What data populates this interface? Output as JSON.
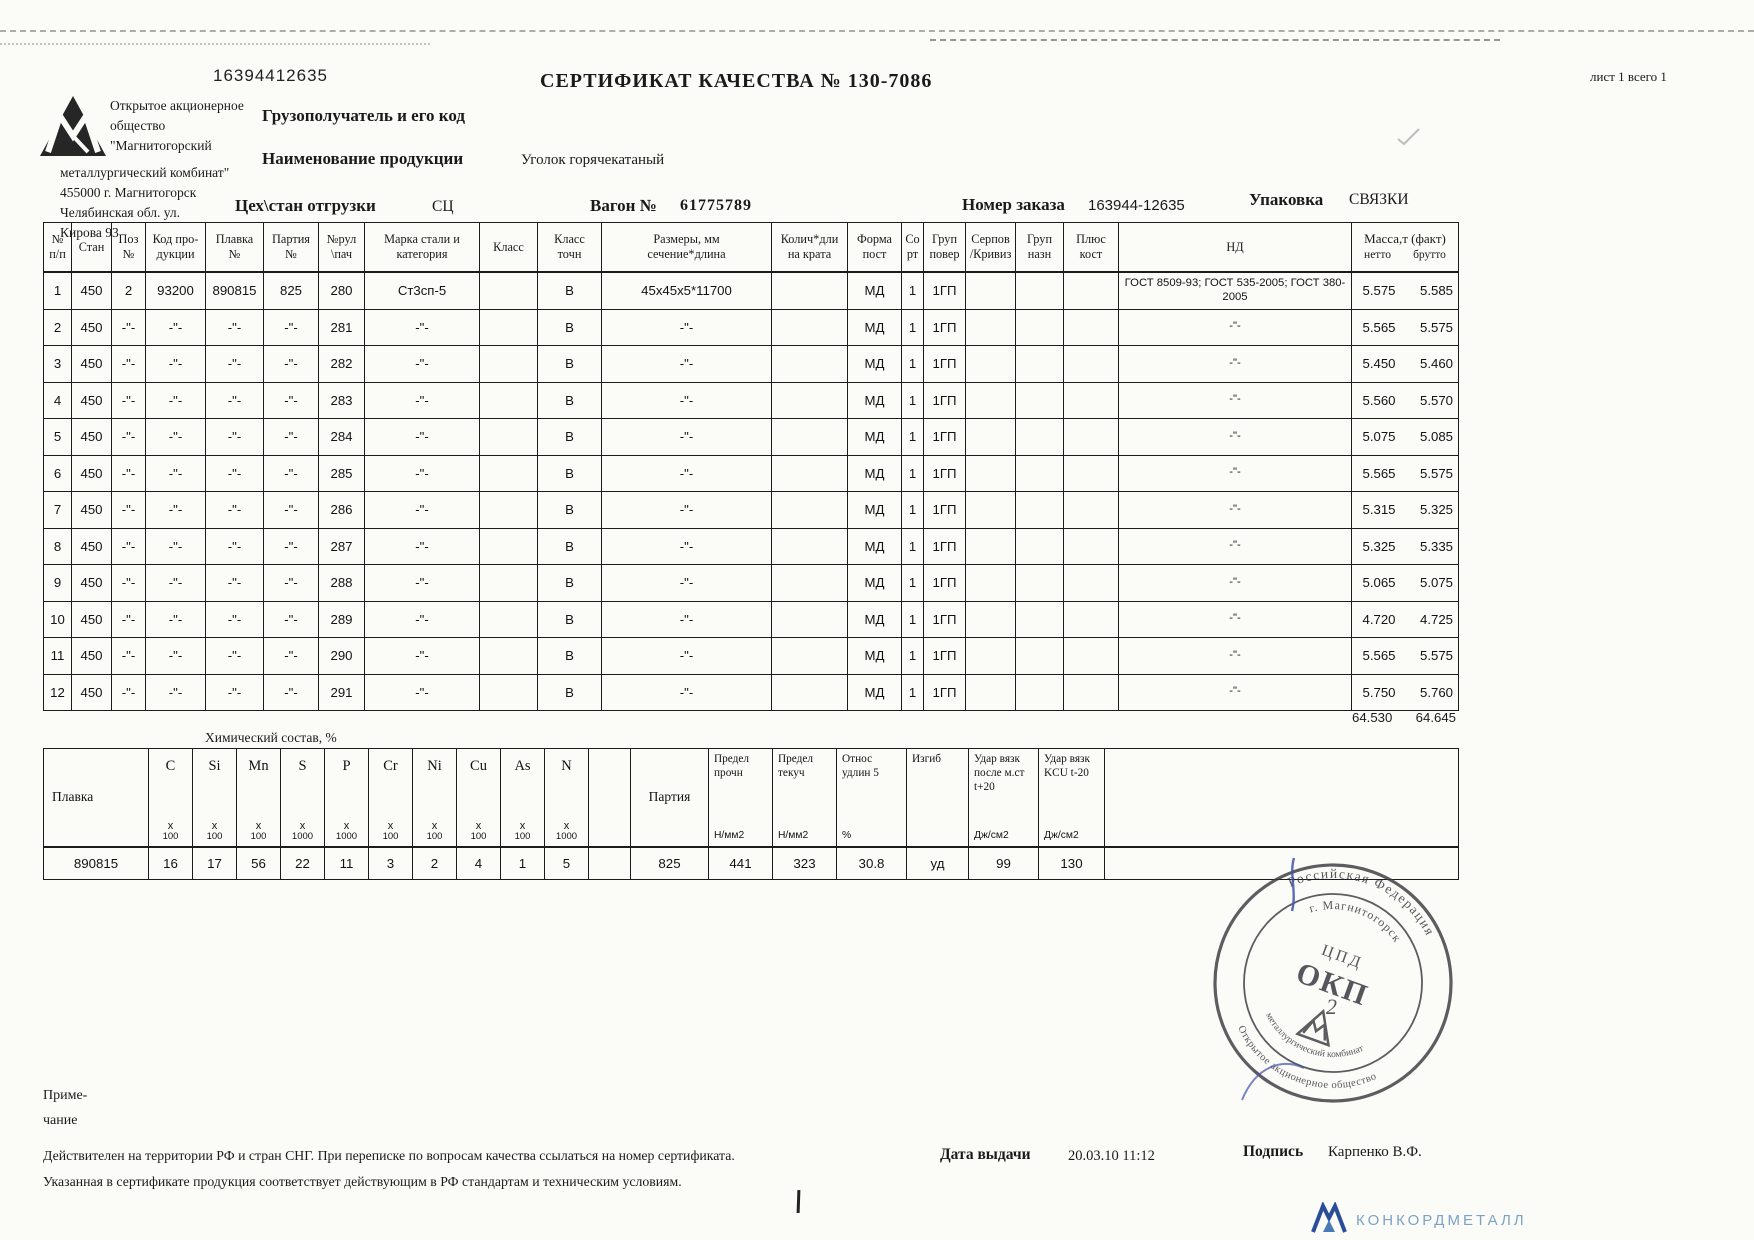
{
  "header": {
    "doc_number": "16394412635",
    "title": "СЕРТИФИКАТ КАЧЕСТВА № 130-7086",
    "sheet_label": "лист 1 всего 1",
    "company_top": "Открытое акционерное\nобщество\n\"Магнитогорский",
    "company_bottom": "металлургический комбинат\"\n455000 г. Магнитогорск\nЧелябинская обл.  ул.\nКирова 93",
    "consignee_label": "Грузополучатель и его код",
    "product_label": "Наименование продукции",
    "product_value": "Уголок горячекатаный",
    "shop_label": "Цех\\стан отгрузки",
    "shop_value": "СЦ",
    "wagon_label": "Вагон №",
    "wagon_value": "61775789",
    "order_label": "Номер заказа",
    "order_value": "163944-12635",
    "pack_label": "Упаковка",
    "pack_value": "СВЯЗКИ"
  },
  "main_table": {
    "headers": [
      "№\nп/п",
      "Стан",
      "Поз\n№",
      "Код про-\nдукции",
      "Плавка\n№",
      "Партия\n№",
      "№рул\n\\пач",
      "Марка стали и\nкатегория",
      "Класс",
      "Класс\nточн",
      "Размеры, мм\nсечение*длина",
      "Колич*дли\nна крата",
      "Форма\nпост",
      "Со\nрт",
      "Груп\nповер",
      "Серпов\n/Кривиз",
      "Груп\nназн",
      "Плюс\nкост",
      "НД"
    ],
    "mass_header": {
      "label": "Масса,т (факт)",
      "netto": "нетто",
      "brutto": "брутто"
    },
    "rows": [
      [
        "1",
        "450",
        "2",
        "93200",
        "890815",
        "825",
        "280",
        "Ст3сп-5",
        "",
        "В",
        "45х45х5*11700",
        "",
        "МД",
        "1",
        "1ГП",
        "",
        "",
        "",
        "ГОСТ 8509-93; ГОСТ 535-2005; ГОСТ 380-2005",
        "5.575",
        "5.585"
      ],
      [
        "2",
        "450",
        "-\"-",
        "-\"-",
        "-\"-",
        "-\"-",
        "281",
        "-\"-",
        "",
        "В",
        "-\"-",
        "",
        "МД",
        "1",
        "1ГП",
        "",
        "",
        "",
        "-\"-",
        "5.565",
        "5.575"
      ],
      [
        "3",
        "450",
        "-\"-",
        "-\"-",
        "-\"-",
        "-\"-",
        "282",
        "-\"-",
        "",
        "В",
        "-\"-",
        "",
        "МД",
        "1",
        "1ГП",
        "",
        "",
        "",
        "-\"-",
        "5.450",
        "5.460"
      ],
      [
        "4",
        "450",
        "-\"-",
        "-\"-",
        "-\"-",
        "-\"-",
        "283",
        "-\"-",
        "",
        "В",
        "-\"-",
        "",
        "МД",
        "1",
        "1ГП",
        "",
        "",
        "",
        "-\"-",
        "5.560",
        "5.570"
      ],
      [
        "5",
        "450",
        "-\"-",
        "-\"-",
        "-\"-",
        "-\"-",
        "284",
        "-\"-",
        "",
        "В",
        "-\"-",
        "",
        "МД",
        "1",
        "1ГП",
        "",
        "",
        "",
        "-\"-",
        "5.075",
        "5.085"
      ],
      [
        "6",
        "450",
        "-\"-",
        "-\"-",
        "-\"-",
        "-\"-",
        "285",
        "-\"-",
        "",
        "В",
        "-\"-",
        "",
        "МД",
        "1",
        "1ГП",
        "",
        "",
        "",
        "-\"-",
        "5.565",
        "5.575"
      ],
      [
        "7",
        "450",
        "-\"-",
        "-\"-",
        "-\"-",
        "-\"-",
        "286",
        "-\"-",
        "",
        "В",
        "-\"-",
        "",
        "МД",
        "1",
        "1ГП",
        "",
        "",
        "",
        "-\"-",
        "5.315",
        "5.325"
      ],
      [
        "8",
        "450",
        "-\"-",
        "-\"-",
        "-\"-",
        "-\"-",
        "287",
        "-\"-",
        "",
        "В",
        "-\"-",
        "",
        "МД",
        "1",
        "1ГП",
        "",
        "",
        "",
        "-\"-",
        "5.325",
        "5.335"
      ],
      [
        "9",
        "450",
        "-\"-",
        "-\"-",
        "-\"-",
        "-\"-",
        "288",
        "-\"-",
        "",
        "В",
        "-\"-",
        "",
        "МД",
        "1",
        "1ГП",
        "",
        "",
        "",
        "-\"-",
        "5.065",
        "5.075"
      ],
      [
        "10",
        "450",
        "-\"-",
        "-\"-",
        "-\"-",
        "-\"-",
        "289",
        "-\"-",
        "",
        "В",
        "-\"-",
        "",
        "МД",
        "1",
        "1ГП",
        "",
        "",
        "",
        "-\"-",
        "4.720",
        "4.725"
      ],
      [
        "11",
        "450",
        "-\"-",
        "-\"-",
        "-\"-",
        "-\"-",
        "290",
        "-\"-",
        "",
        "В",
        "-\"-",
        "",
        "МД",
        "1",
        "1ГП",
        "",
        "",
        "",
        "-\"-",
        "5.565",
        "5.575"
      ],
      [
        "12",
        "450",
        "-\"-",
        "-\"-",
        "-\"-",
        "-\"-",
        "291",
        "-\"-",
        "",
        "В",
        "-\"-",
        "",
        "МД",
        "1",
        "1ГП",
        "",
        "",
        "",
        "-\"-",
        "5.750",
        "5.760"
      ]
    ],
    "total_netto": "64.530",
    "total_brutto": "64.645"
  },
  "chem_table": {
    "title": "Химический состав, %",
    "plavka_label": "Плавка",
    "plavka_value": "890815",
    "mult_sign": "x",
    "elements": [
      {
        "symbol": "C",
        "mult": "100",
        "value": "16"
      },
      {
        "symbol": "Si",
        "mult": "100",
        "value": "17"
      },
      {
        "symbol": "Mn",
        "mult": "100",
        "value": "56"
      },
      {
        "symbol": "S",
        "mult": "1000",
        "value": "22"
      },
      {
        "symbol": "P",
        "mult": "1000",
        "value": "11"
      },
      {
        "symbol": "Cr",
        "mult": "100",
        "value": "3"
      },
      {
        "symbol": "Ni",
        "mult": "100",
        "value": "2"
      },
      {
        "symbol": "Cu",
        "mult": "100",
        "value": "4"
      },
      {
        "symbol": "As",
        "mult": "100",
        "value": "1"
      },
      {
        "symbol": "N",
        "mult": "1000",
        "value": "5"
      }
    ],
    "partiya_label": "Партия",
    "partiya_value": "825",
    "right_cols": [
      {
        "label": "Предел\nпрочн",
        "unit": "Н/мм2",
        "value": "441"
      },
      {
        "label": "Предел\nтекуч",
        "unit": "Н/мм2",
        "value": "323"
      },
      {
        "label": "Относ\nудлин 5",
        "unit": "%",
        "value": "30.8"
      },
      {
        "label": "Изгиб",
        "unit": "",
        "value": "уд"
      },
      {
        "label": "Удар вязк\nпосле м.ст\nt+20",
        "unit": "Дж/см2",
        "value": "99"
      },
      {
        "label": "Удар вязк\nKCU t-20",
        "unit": "Дж/см2",
        "value": "130"
      }
    ]
  },
  "footer": {
    "note": "Приме-\nчание",
    "validity": "Действителен на территории РФ и стран СНГ. При переписке по вопросам качества ссылаться на номер сертификата.\nУказанная в сертификате продукция соответствует действующим в РФ стандартам и техническим условиям.",
    "date_label": "Дата выдачи",
    "date_value": "20.03.10 11:12",
    "sign_label": "Подпись",
    "sign_value": "Карпенко В.Ф."
  },
  "stamp": {
    "ring_top": "Российская Федерация",
    "ring_top_inner": "г. Магнитогорск",
    "ring_bottom": "Открытое акционерное общество",
    "ring_bottom_inner": "металлургический комбинат",
    "center_top": "ЦПД",
    "center_main": "ОКП",
    "pen_mark": "2"
  },
  "brand": {
    "name": "КОНКОРДМЕТАЛЛ"
  }
}
